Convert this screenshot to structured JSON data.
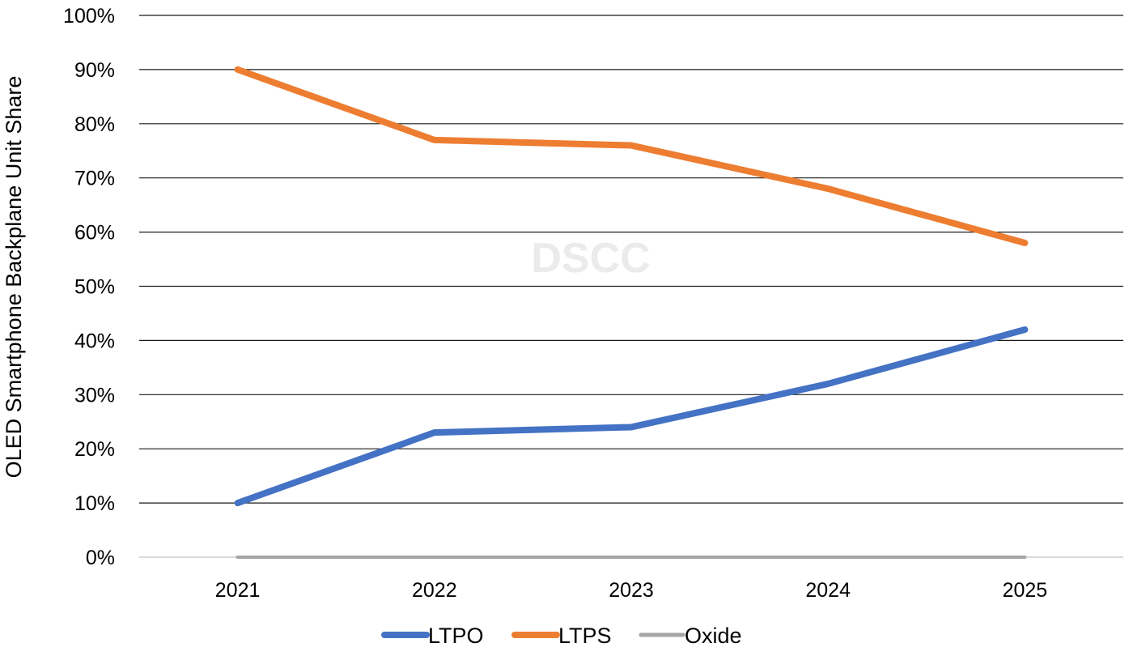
{
  "chart_data": {
    "type": "line",
    "title": "",
    "xlabel": "",
    "ylabel": "OLED Smartphone Backplane Unit Share",
    "categories": [
      "2021",
      "2022",
      "2023",
      "2024",
      "2025"
    ],
    "ylim": [
      0,
      100
    ],
    "ytick_step": 10,
    "ytick_labels": [
      "0%",
      "10%",
      "20%",
      "30%",
      "40%",
      "50%",
      "60%",
      "70%",
      "80%",
      "90%",
      "100%"
    ],
    "grid": true,
    "legend_position": "bottom-center",
    "watermark": "DSCC",
    "series": [
      {
        "name": "LTPO",
        "color": "#4472c4",
        "values": [
          10,
          23,
          24,
          32,
          42
        ]
      },
      {
        "name": "LTPS",
        "color": "#ed7d31",
        "values": [
          90,
          77,
          76,
          68,
          58
        ]
      },
      {
        "name": "Oxide",
        "color": "#a5a5a5",
        "values": [
          0,
          0,
          0,
          0,
          0
        ]
      }
    ]
  }
}
